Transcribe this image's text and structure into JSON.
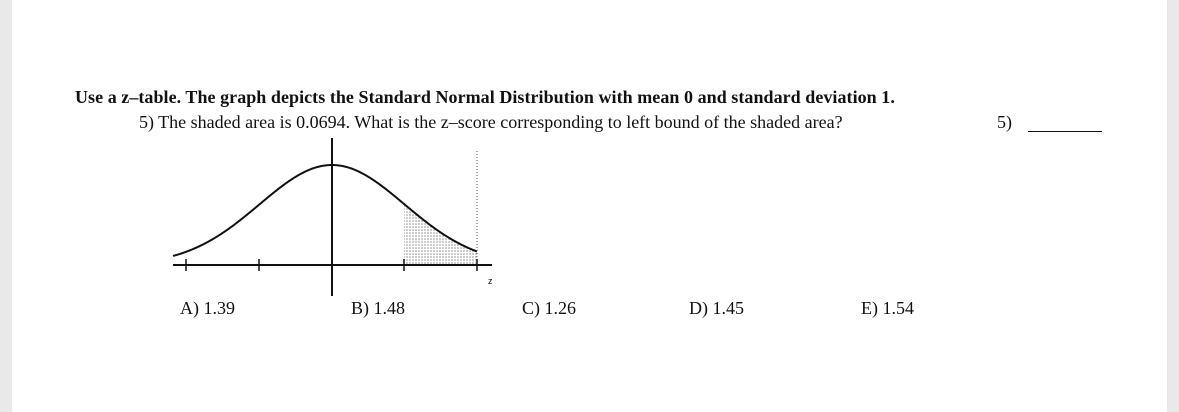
{
  "instructions": "Use a z–table.  The graph depicts the Standard Normal Distribution with mean 0 and standard deviation 1.",
  "question": {
    "text": "5) The shaded area is 0.0694.  What is the z–score corresponding to left bound of the shaded area?",
    "answer_label": "5)"
  },
  "graph": {
    "axis_label": "z"
  },
  "choices": [
    {
      "label": "A) 1.39"
    },
    {
      "label": "B) 1.48"
    },
    {
      "label": "C) 1.26"
    },
    {
      "label": "D) 1.45"
    },
    {
      "label": "E) 1.54"
    }
  ]
}
